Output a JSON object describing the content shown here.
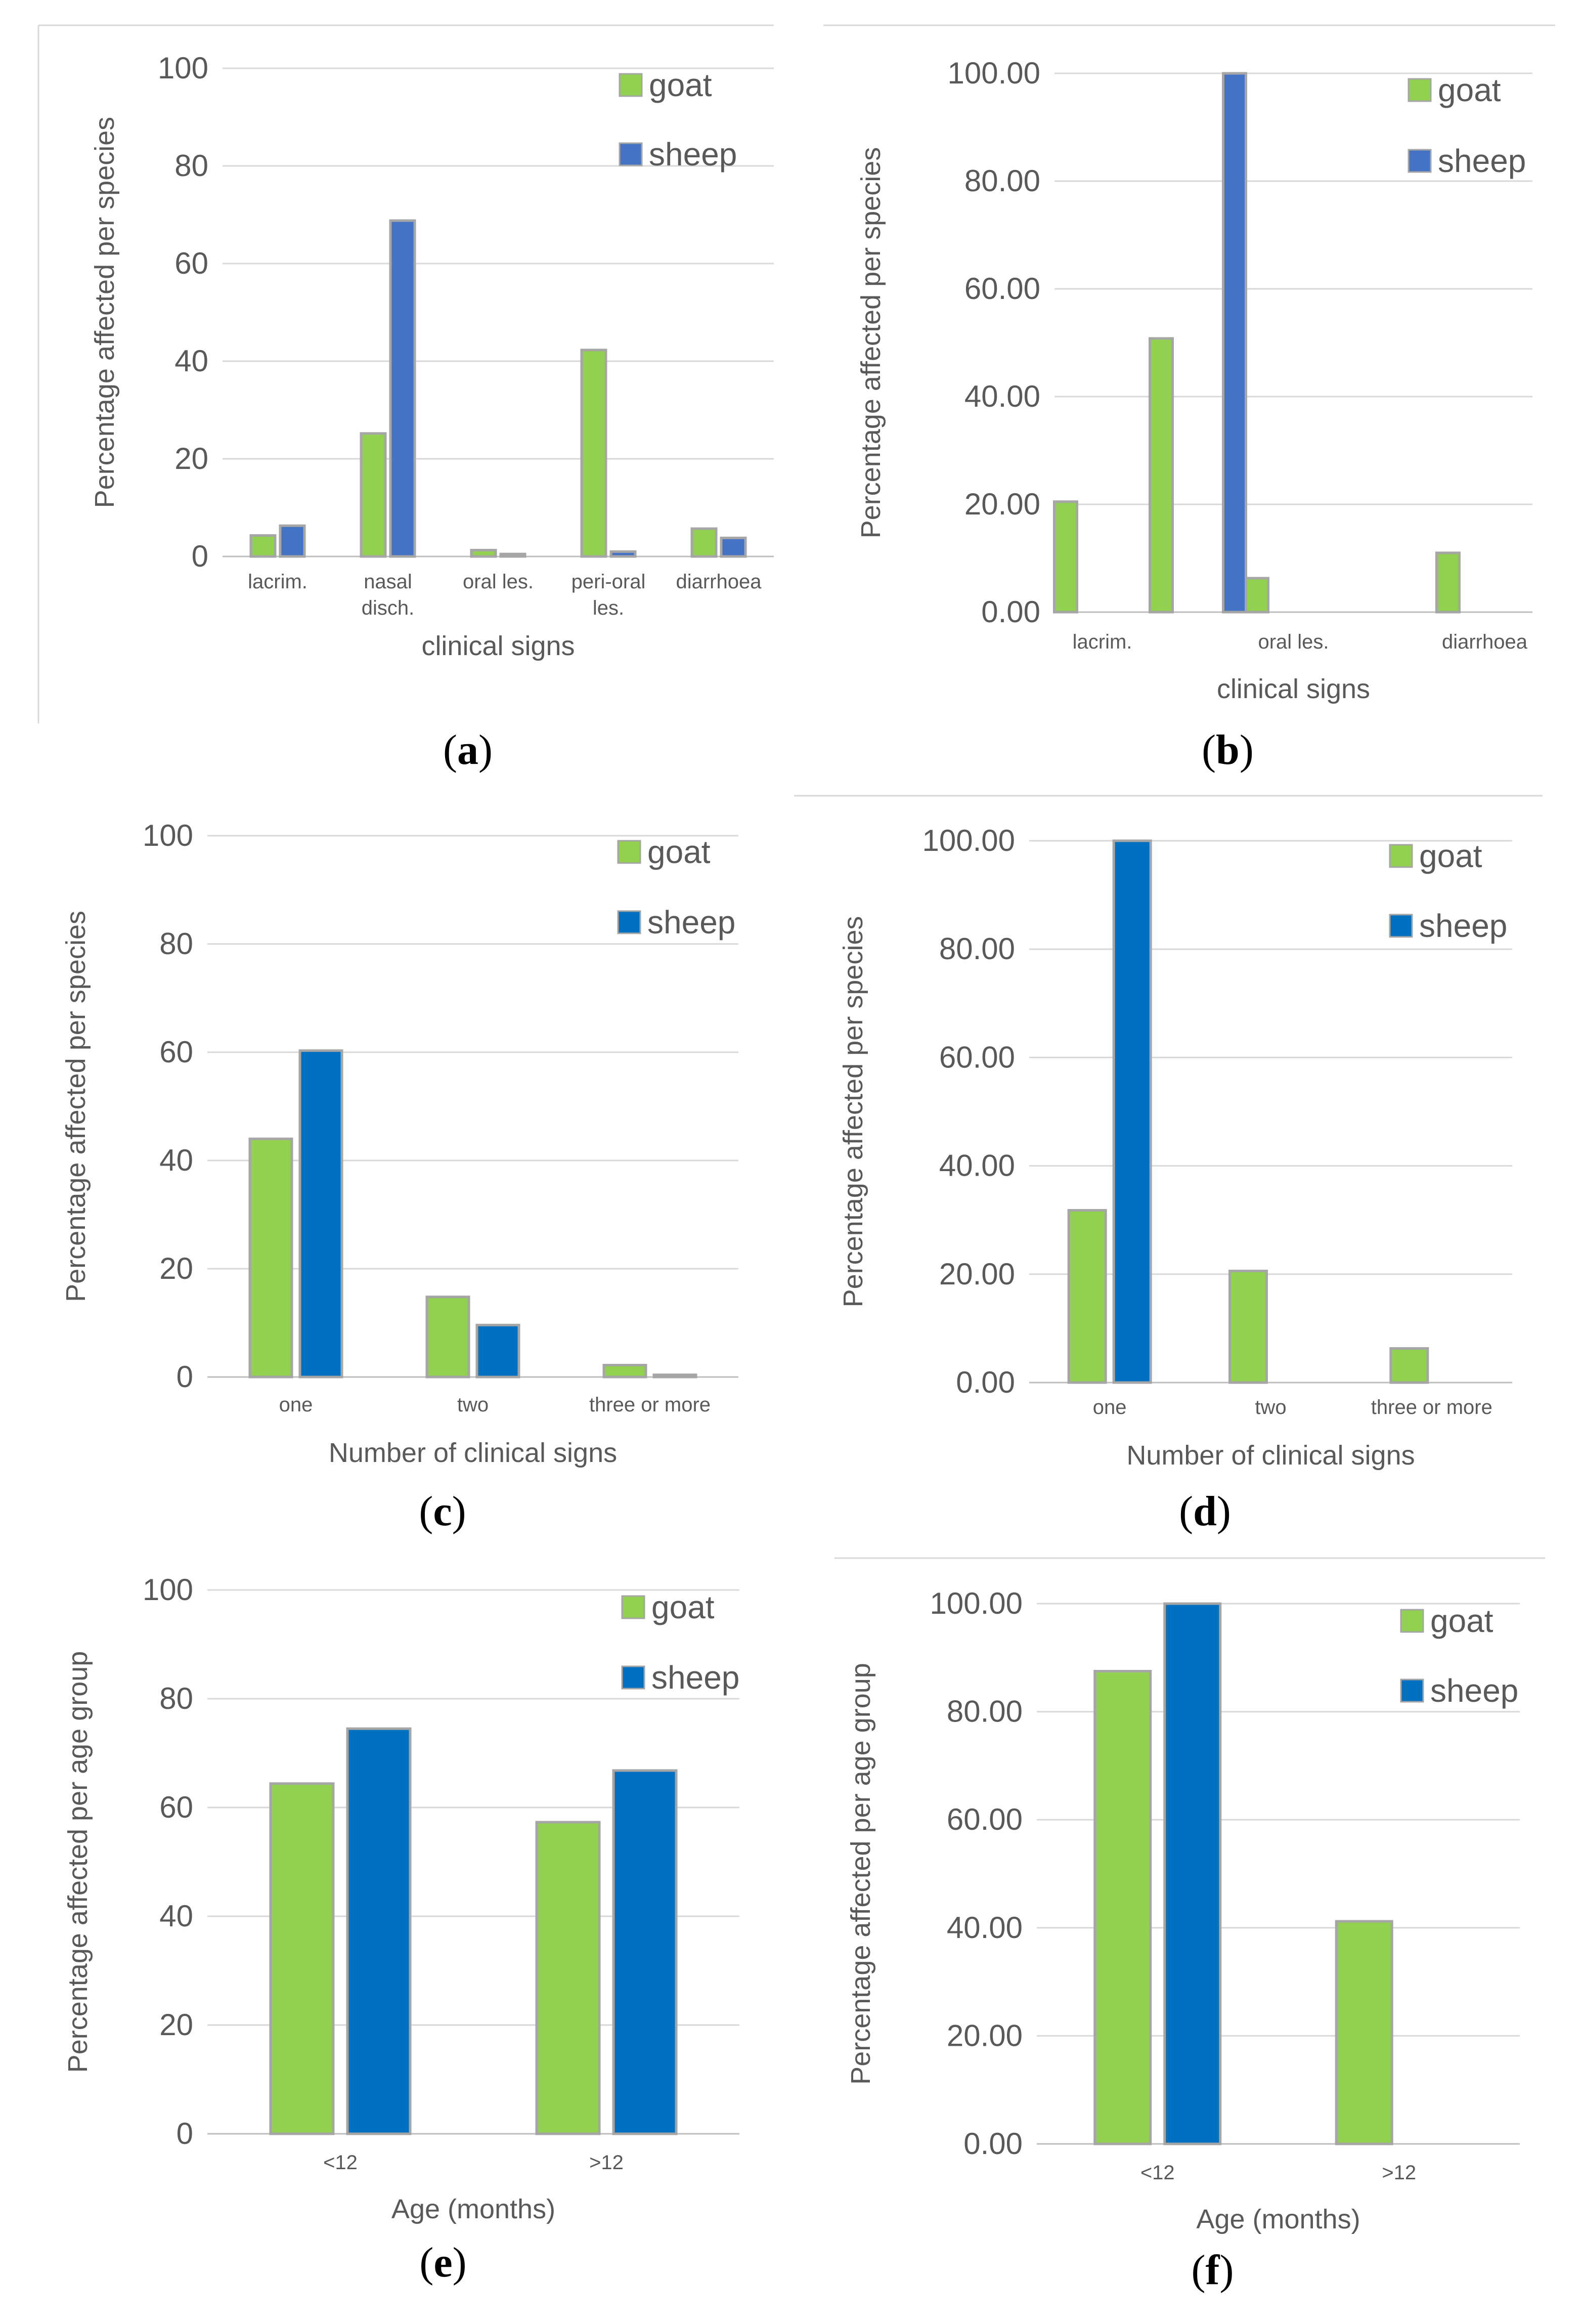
{
  "colors": {
    "goat": "#92d050",
    "sheep_ab": "#4472c4",
    "sheep": "#0070c0",
    "grid": "#d9d9d9",
    "bar_edge": "#a6a6a6"
  },
  "chart_data": [
    {
      "panel_label": "(a)",
      "type": "bar",
      "title": "",
      "xlabel": "clinical signs",
      "ylabel": "Percentage affected per species",
      "ylim": [
        0,
        100
      ],
      "yticks": [
        "0",
        "20",
        "40",
        "60",
        "80",
        "100"
      ],
      "categories": [
        [
          "lacrim."
        ],
        [
          "nasal",
          "disch."
        ],
        [
          "oral les."
        ],
        [
          "peri-oral",
          "les."
        ],
        [
          "diarrhoea"
        ]
      ],
      "series": [
        {
          "name": "goat",
          "values": [
            4.3,
            25.2,
            1.3,
            42.3,
            5.7
          ]
        },
        {
          "name": "sheep",
          "values": [
            6.3,
            68.8,
            0.5,
            1.0,
            3.8
          ]
        }
      ],
      "legend": "top-right"
    },
    {
      "panel_label": "(b)",
      "type": "bar",
      "title": "",
      "xlabel": "clinical signs",
      "ylabel": "Percentage affected per species",
      "ylim": [
        0,
        100
      ],
      "yticks": [
        "0.00",
        "20.00",
        "40.00",
        "60.00",
        "80.00",
        "100.00"
      ],
      "categories": [
        [
          "lacrim."
        ],
        [
          ""
        ],
        [
          "oral les."
        ],
        [
          ""
        ],
        [
          "diarrhoea"
        ]
      ],
      "series": [
        {
          "name": "goat",
          "values": [
            20.5,
            50.8,
            6.3,
            0,
            11.0
          ]
        },
        {
          "name": "sheep",
          "values": [
            0,
            100.0,
            0,
            0,
            0
          ]
        }
      ],
      "legend": "top-right"
    },
    {
      "panel_label": "(c)",
      "type": "bar",
      "title": "",
      "xlabel": "Number of clinical signs",
      "ylabel": "Percentage affected per species",
      "ylim": [
        0,
        100
      ],
      "yticks": [
        "0",
        "20",
        "40",
        "60",
        "80",
        "100"
      ],
      "categories": [
        [
          "one"
        ],
        [
          "two"
        ],
        [
          "three or more"
        ]
      ],
      "series": [
        {
          "name": "goat",
          "values": [
            44.0,
            14.8,
            2.2
          ]
        },
        {
          "name": "sheep",
          "values": [
            60.3,
            9.6,
            0.4
          ]
        }
      ],
      "legend": "top-right"
    },
    {
      "panel_label": "(d)",
      "type": "bar",
      "title": "",
      "xlabel": "Number of clinical signs",
      "ylabel": "Percentage affected per species",
      "ylim": [
        0,
        100
      ],
      "yticks": [
        "0.00",
        "20.00",
        "40.00",
        "60.00",
        "80.00",
        "100.00"
      ],
      "categories": [
        [
          "one"
        ],
        [
          "two"
        ],
        [
          "three or more"
        ]
      ],
      "series": [
        {
          "name": "goat",
          "values": [
            31.8,
            20.6,
            6.3
          ]
        },
        {
          "name": "sheep",
          "values": [
            100.0,
            0,
            0
          ]
        }
      ],
      "legend": "top-right"
    },
    {
      "panel_label": "(e)",
      "type": "bar",
      "title": "",
      "xlabel": "Age (months)",
      "ylabel": "Percentage affected per age group",
      "ylim": [
        0,
        100
      ],
      "yticks": [
        "0",
        "20",
        "40",
        "60",
        "80",
        "100"
      ],
      "categories": [
        [
          "<12"
        ],
        [
          ">12"
        ]
      ],
      "series": [
        {
          "name": "goat",
          "values": [
            64.4,
            57.3
          ]
        },
        {
          "name": "sheep",
          "values": [
            74.5,
            66.8
          ]
        }
      ],
      "legend": "top-right"
    },
    {
      "panel_label": "(f)",
      "type": "bar",
      "title": "",
      "xlabel": "Age (months)",
      "ylabel": "Percentage affected per age group",
      "ylim": [
        0,
        100
      ],
      "yticks": [
        "0.00",
        "20.00",
        "40.00",
        "60.00",
        "80.00",
        "100.00"
      ],
      "categories": [
        [
          "<12"
        ],
        [
          ">12"
        ]
      ],
      "series": [
        {
          "name": "goat",
          "values": [
            87.5,
            41.2
          ]
        },
        {
          "name": "sheep",
          "values": [
            100.0,
            0
          ]
        }
      ],
      "legend": "top-right"
    }
  ]
}
